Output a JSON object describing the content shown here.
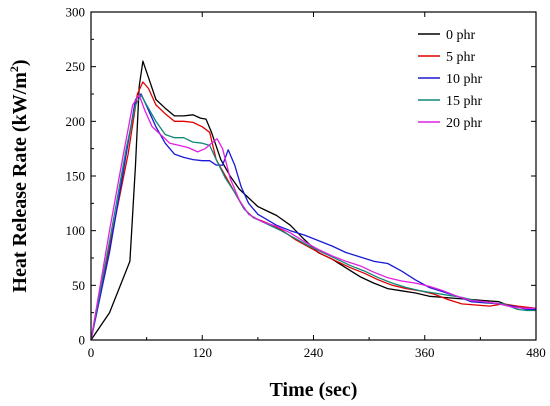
{
  "chart_data": {
    "type": "line",
    "title": "",
    "xlabel": "Time (sec)",
    "ylabel_main": "Heat Release Rate (kW/m",
    "ylabel_sup": "2",
    "ylabel_close": ")",
    "xlim": [
      0,
      480
    ],
    "ylim": [
      0,
      300
    ],
    "xticks": [
      0,
      120,
      240,
      360,
      480
    ],
    "yticks": [
      0,
      50,
      100,
      150,
      200,
      250,
      300
    ],
    "grid": false,
    "legend_position": "top-right",
    "series": [
      {
        "name": "0 phr",
        "color": "#000000",
        "points": [
          [
            0,
            0
          ],
          [
            20,
            25
          ],
          [
            42,
            72
          ],
          [
            48,
            160
          ],
          [
            52,
            232
          ],
          [
            56,
            255
          ],
          [
            62,
            240
          ],
          [
            70,
            220
          ],
          [
            80,
            212
          ],
          [
            90,
            205
          ],
          [
            100,
            205
          ],
          [
            110,
            206
          ],
          [
            118,
            203
          ],
          [
            124,
            202
          ],
          [
            130,
            190
          ],
          [
            140,
            165
          ],
          [
            150,
            150
          ],
          [
            160,
            138
          ],
          [
            170,
            130
          ],
          [
            180,
            122
          ],
          [
            190,
            118
          ],
          [
            200,
            114
          ],
          [
            215,
            105
          ],
          [
            230,
            92
          ],
          [
            245,
            80
          ],
          [
            260,
            74
          ],
          [
            275,
            66
          ],
          [
            290,
            58
          ],
          [
            305,
            52
          ],
          [
            320,
            47
          ],
          [
            335,
            45
          ],
          [
            350,
            43
          ],
          [
            365,
            40
          ],
          [
            380,
            39
          ],
          [
            395,
            38
          ],
          [
            410,
            37
          ],
          [
            425,
            36
          ],
          [
            440,
            35
          ],
          [
            455,
            30
          ],
          [
            470,
            29
          ],
          [
            480,
            28
          ]
        ]
      },
      {
        "name": "5 phr",
        "color": "#e00000",
        "points": [
          [
            0,
            0
          ],
          [
            20,
            85
          ],
          [
            40,
            170
          ],
          [
            50,
            225
          ],
          [
            56,
            236
          ],
          [
            62,
            230
          ],
          [
            70,
            215
          ],
          [
            80,
            207
          ],
          [
            90,
            200
          ],
          [
            100,
            200
          ],
          [
            110,
            199
          ],
          [
            120,
            195
          ],
          [
            128,
            190
          ],
          [
            135,
            165
          ],
          [
            145,
            150
          ],
          [
            155,
            135
          ],
          [
            165,
            120
          ],
          [
            175,
            112
          ],
          [
            190,
            107
          ],
          [
            205,
            101
          ],
          [
            220,
            92
          ],
          [
            235,
            85
          ],
          [
            250,
            78
          ],
          [
            265,
            72
          ],
          [
            280,
            66
          ],
          [
            295,
            61
          ],
          [
            310,
            55
          ],
          [
            325,
            50
          ],
          [
            340,
            47
          ],
          [
            355,
            45
          ],
          [
            370,
            42
          ],
          [
            385,
            37
          ],
          [
            400,
            33
          ],
          [
            415,
            32
          ],
          [
            430,
            31
          ],
          [
            445,
            33
          ],
          [
            460,
            31
          ],
          [
            480,
            29
          ]
        ]
      },
      {
        "name": "10 phr",
        "color": "#1a1ad6",
        "points": [
          [
            0,
            0
          ],
          [
            20,
            80
          ],
          [
            38,
            170
          ],
          [
            48,
            220
          ],
          [
            54,
            225
          ],
          [
            60,
            214
          ],
          [
            70,
            195
          ],
          [
            80,
            180
          ],
          [
            90,
            170
          ],
          [
            100,
            167
          ],
          [
            110,
            165
          ],
          [
            120,
            164
          ],
          [
            128,
            164
          ],
          [
            135,
            160
          ],
          [
            142,
            160
          ],
          [
            148,
            174
          ],
          [
            155,
            160
          ],
          [
            162,
            140
          ],
          [
            170,
            125
          ],
          [
            180,
            115
          ],
          [
            190,
            110
          ],
          [
            200,
            105
          ],
          [
            215,
            100
          ],
          [
            230,
            96
          ],
          [
            245,
            91
          ],
          [
            260,
            86
          ],
          [
            275,
            80
          ],
          [
            290,
            76
          ],
          [
            305,
            72
          ],
          [
            320,
            70
          ],
          [
            335,
            63
          ],
          [
            350,
            55
          ],
          [
            365,
            48
          ],
          [
            380,
            44
          ],
          [
            395,
            40
          ],
          [
            410,
            35
          ],
          [
            425,
            34
          ],
          [
            440,
            33
          ],
          [
            455,
            31
          ],
          [
            470,
            28
          ],
          [
            480,
            28
          ]
        ]
      },
      {
        "name": "15 phr",
        "color": "#108878",
        "points": [
          [
            0,
            0
          ],
          [
            20,
            90
          ],
          [
            38,
            175
          ],
          [
            48,
            215
          ],
          [
            54,
            224
          ],
          [
            60,
            215
          ],
          [
            70,
            200
          ],
          [
            80,
            188
          ],
          [
            90,
            185
          ],
          [
            100,
            185
          ],
          [
            110,
            181
          ],
          [
            120,
            180
          ],
          [
            128,
            178
          ],
          [
            135,
            165
          ],
          [
            145,
            148
          ],
          [
            155,
            135
          ],
          [
            165,
            120
          ],
          [
            175,
            112
          ],
          [
            190,
            106
          ],
          [
            205,
            100
          ],
          [
            220,
            93
          ],
          [
            235,
            86
          ],
          [
            250,
            80
          ],
          [
            265,
            74
          ],
          [
            280,
            68
          ],
          [
            295,
            63
          ],
          [
            310,
            57
          ],
          [
            325,
            52
          ],
          [
            340,
            48
          ],
          [
            355,
            45
          ],
          [
            370,
            43
          ],
          [
            385,
            41
          ],
          [
            400,
            39
          ],
          [
            415,
            36
          ],
          [
            430,
            34
          ],
          [
            445,
            33
          ],
          [
            460,
            28
          ],
          [
            470,
            27
          ],
          [
            480,
            27
          ]
        ]
      },
      {
        "name": "20 phr",
        "color": "#e020e0",
        "points": [
          [
            0,
            0
          ],
          [
            20,
            100
          ],
          [
            35,
            170
          ],
          [
            45,
            215
          ],
          [
            52,
            224
          ],
          [
            58,
            210
          ],
          [
            66,
            195
          ],
          [
            75,
            188
          ],
          [
            85,
            180
          ],
          [
            95,
            178
          ],
          [
            105,
            176
          ],
          [
            115,
            172
          ],
          [
            123,
            175
          ],
          [
            130,
            180
          ],
          [
            136,
            184
          ],
          [
            142,
            175
          ],
          [
            150,
            148
          ],
          [
            160,
            128
          ],
          [
            170,
            115
          ],
          [
            185,
            108
          ],
          [
            200,
            104
          ],
          [
            215,
            98
          ],
          [
            230,
            90
          ],
          [
            245,
            83
          ],
          [
            260,
            77
          ],
          [
            275,
            72
          ],
          [
            290,
            68
          ],
          [
            305,
            62
          ],
          [
            320,
            57
          ],
          [
            335,
            54
          ],
          [
            350,
            52
          ],
          [
            365,
            49
          ],
          [
            380,
            45
          ],
          [
            395,
            40
          ],
          [
            410,
            36
          ],
          [
            425,
            35
          ],
          [
            440,
            33
          ],
          [
            455,
            30
          ],
          [
            470,
            29
          ],
          [
            480,
            29
          ]
        ]
      }
    ]
  }
}
